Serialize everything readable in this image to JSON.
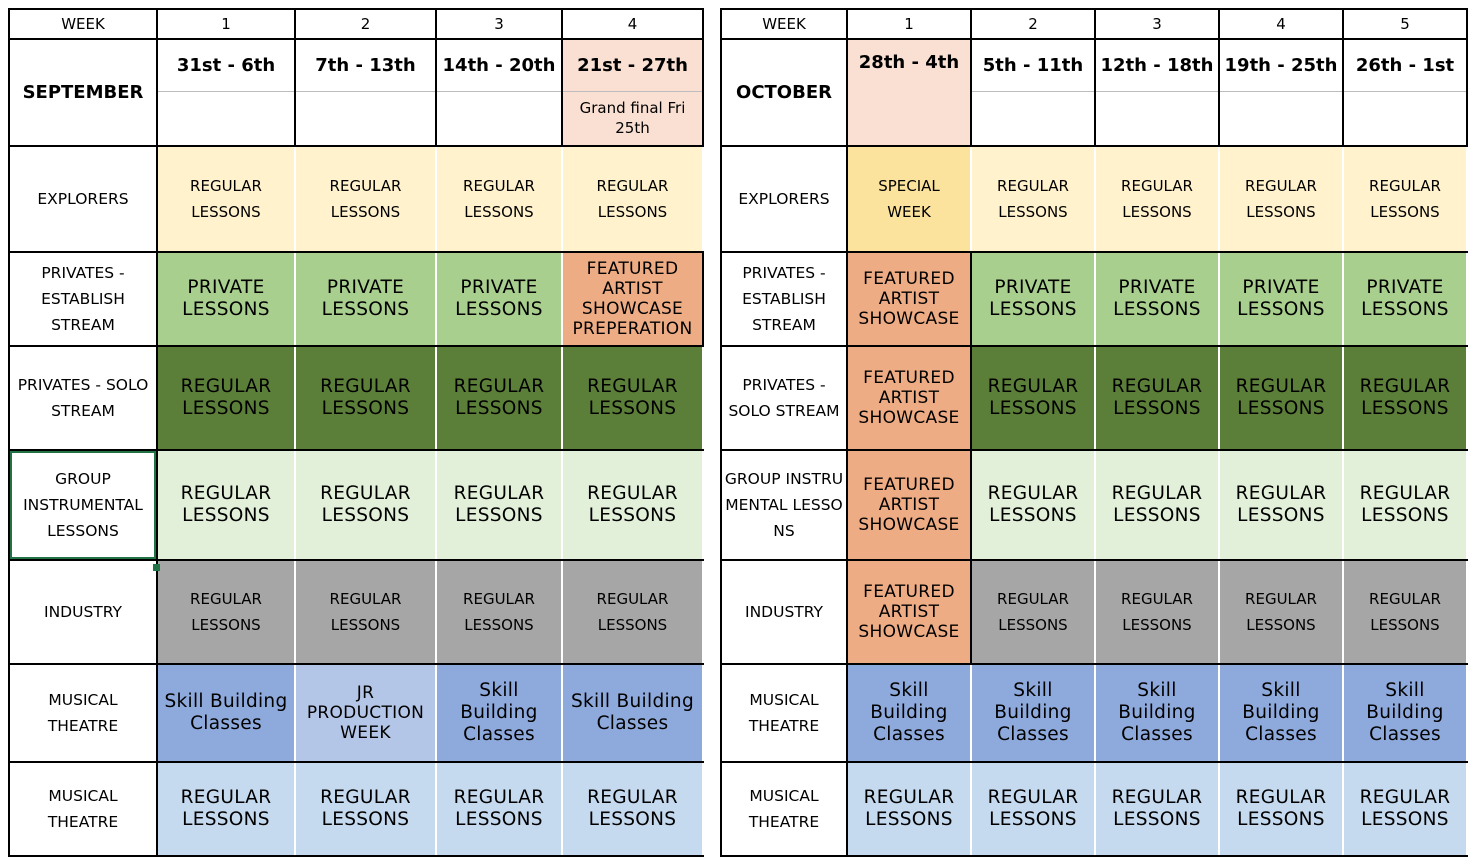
{
  "september": {
    "week_label": "WEEK",
    "month": "SEPTEMBER",
    "weeks": [
      "1",
      "2",
      "3",
      "4"
    ],
    "dates": [
      "31st - 6th",
      "7th - 13th",
      "14th - 20th",
      "21st - 27th"
    ],
    "notes": [
      "",
      "",
      "",
      "Grand final Fri 25th"
    ],
    "rows": [
      {
        "label": "EXPLORERS",
        "cells": [
          "REGULAR\nLESSONS",
          "REGULAR\nLESSONS",
          "REGULAR\nLESSONS",
          "REGULAR\nLESSONS"
        ]
      },
      {
        "label": "PRIVATES - ESTABLISH STREAM",
        "cells": [
          "PRIVATE LESSONS",
          "PRIVATE LESSONS",
          "PRIVATE LESSONS",
          "FEATURED ARTIST SHOWCASE PREPERATION"
        ]
      },
      {
        "label": "PRIVATES - SOLO STREAM",
        "cells": [
          "REGULAR LESSONS",
          "REGULAR LESSONS",
          "REGULAR LESSONS",
          "REGULAR LESSONS"
        ]
      },
      {
        "label": "GROUP INSTRUMENTAL LESSONS",
        "cells": [
          "REGULAR LESSONS",
          "REGULAR LESSONS",
          "REGULAR LESSONS",
          "REGULAR LESSONS"
        ]
      },
      {
        "label": "INDUSTRY",
        "cells": [
          "REGULAR\nLESSONS",
          "REGULAR\nLESSONS",
          "REGULAR\nLESSONS",
          "REGULAR\nLESSONS"
        ]
      },
      {
        "label": "MUSICAL THEATRE",
        "cells": [
          "Skill Building Classes",
          "JR PRODUCTION WEEK",
          "Skill Building Classes",
          "Skill Building Classes"
        ]
      },
      {
        "label": "MUSICAL THEATRE",
        "cells": [
          "REGULAR LESSONS",
          "REGULAR LESSONS",
          "REGULAR LESSONS",
          "REGULAR LESSONS"
        ]
      }
    ]
  },
  "october": {
    "week_label": "WEEK",
    "month": "OCTOBER",
    "weeks": [
      "1",
      "2",
      "3",
      "4",
      "5"
    ],
    "dates": [
      "28th - 4th",
      "5th - 11th",
      "12th - 18th",
      "19th - 25th",
      "26th - 1st"
    ],
    "notes": [
      "",
      "",
      "",
      "",
      ""
    ],
    "rows": [
      {
        "label": "EXPLORERS",
        "cells": [
          "SPECIAL\nWEEK",
          "REGULAR\nLESSONS",
          "REGULAR\nLESSONS",
          "REGULAR\nLESSONS",
          "REGULAR\nLESSONS"
        ]
      },
      {
        "label": "PRIVATES - ESTABLISH STREAM",
        "cells": [
          "FEATURED ARTIST SHOWCASE",
          "PRIVATE LESSONS",
          "PRIVATE LESSONS",
          "PRIVATE LESSONS",
          "PRIVATE LESSONS"
        ]
      },
      {
        "label": "PRIVATES - SOLO STREAM",
        "cells": [
          "FEATURED ARTIST SHOWCASE",
          "REGULAR LESSONS",
          "REGULAR LESSONS",
          "REGULAR LESSONS",
          "REGULAR LESSONS"
        ]
      },
      {
        "label": "GROUP INSTRUMENTAL LESSONS",
        "cells": [
          "FEATURED ARTIST SHOWCASE",
          "REGULAR LESSONS",
          "REGULAR LESSONS",
          "REGULAR LESSONS",
          "REGULAR LESSONS"
        ]
      },
      {
        "label": "INDUSTRY",
        "cells": [
          "FEATURED ARTIST SHOWCASE",
          "REGULAR\nLESSONS",
          "REGULAR\nLESSONS",
          "REGULAR\nLESSONS",
          "REGULAR\nLESSONS"
        ]
      },
      {
        "label": "MUSICAL THEATRE",
        "cells": [
          "Skill Building Classes",
          "Skill Building Classes",
          "Skill Building Classes",
          "Skill Building Classes",
          "Skill Building Classes"
        ]
      },
      {
        "label": "MUSICAL THEATRE",
        "cells": [
          "REGULAR LESSONS",
          "REGULAR LESSONS",
          "REGULAR LESSONS",
          "REGULAR LESSONS",
          "REGULAR LESSONS"
        ]
      }
    ]
  },
  "colors": {
    "cream": "#fff2cc",
    "yellow": "#fbe39d",
    "light_green": "#a9cf8e",
    "dark_green": "#5b7f39",
    "pale_green": "#e2efd9",
    "grey": "#a6a6a6",
    "blue": "#8ea9db",
    "light_blue": "#b4c6e7",
    "pale_blue": "#c5d9ef",
    "orange": "#eeac85",
    "peach": "#f9e0d3",
    "highlight_text": "#c00000"
  }
}
